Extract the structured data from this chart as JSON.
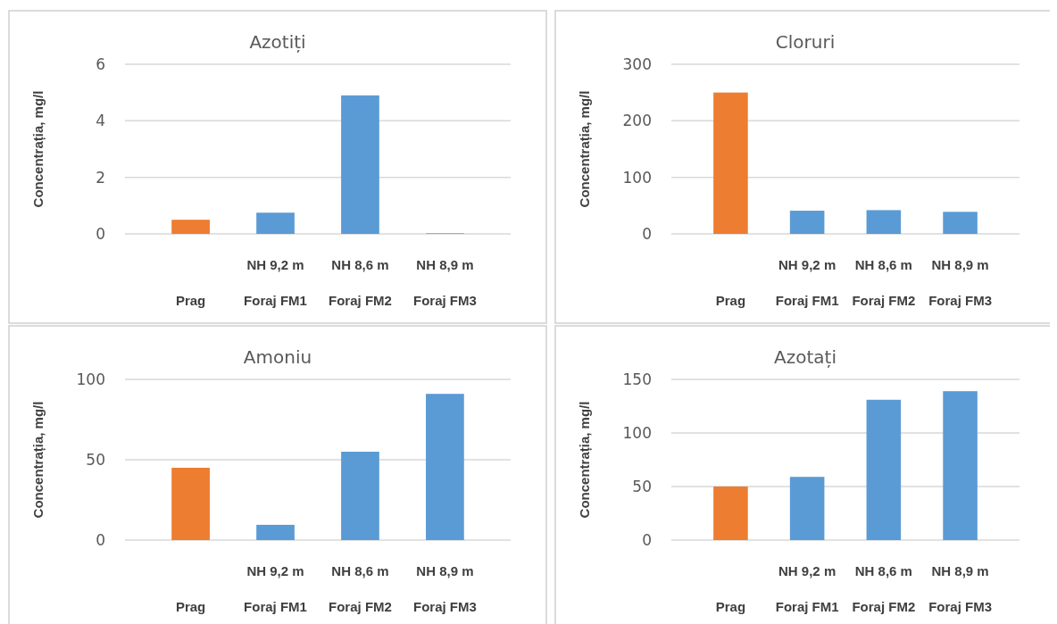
{
  "chart_data": [
    {
      "type": "bar",
      "title": "Azotiți",
      "ylabel": "Concentrația, mg/l",
      "categories": [
        "Prag",
        "Foraj FM1",
        "Foraj FM2",
        "Foraj FM3"
      ],
      "annotations": [
        "NH 9,2 m",
        "NH 8,6 m",
        "NH 8,9 m"
      ],
      "values": [
        0.5,
        0.75,
        4.9,
        0.02
      ],
      "colors": [
        "#ed7d31",
        "#5b9bd5",
        "#5b9bd5",
        "#5b9bd5"
      ],
      "ylim": [
        0,
        6
      ],
      "yticks": [
        0,
        2,
        4,
        6
      ],
      "grid": "y"
    },
    {
      "type": "bar",
      "title": "Cloruri",
      "ylabel": "Concentrația, mg/l",
      "categories": [
        "Prag",
        "Foraj FM1",
        "Foraj FM2",
        "Foraj FM3"
      ],
      "annotations": [
        "NH 9,2 m",
        "NH 8,6 m",
        "NH 8,9 m"
      ],
      "values": [
        250,
        41,
        42,
        39
      ],
      "colors": [
        "#ed7d31",
        "#5b9bd5",
        "#5b9bd5",
        "#5b9bd5"
      ],
      "ylim": [
        0,
        300
      ],
      "yticks": [
        0,
        100,
        200,
        300
      ],
      "grid": "y"
    },
    {
      "type": "bar",
      "title": "Amoniu",
      "ylabel": "Concentrația, mg/l",
      "categories": [
        "Prag",
        "Foraj FM1",
        "Foraj FM2",
        "Foraj FM3"
      ],
      "annotations": [
        "NH 9,2 m",
        "NH 8,6 m",
        "NH 8,9 m"
      ],
      "values": [
        45,
        9.5,
        55,
        91
      ],
      "colors": [
        "#ed7d31",
        "#5b9bd5",
        "#5b9bd5",
        "#5b9bd5"
      ],
      "ylim": [
        0,
        100
      ],
      "yticks": [
        0,
        50,
        100
      ],
      "grid": "y"
    },
    {
      "type": "bar",
      "title": "Azotați",
      "ylabel": "Concentrația, mg/l",
      "categories": [
        "Prag",
        "Foraj FM1",
        "Foraj FM2",
        "Foraj FM3"
      ],
      "annotations": [
        "NH 9,2 m",
        "NH 8,6 m",
        "NH 8,9 m"
      ],
      "values": [
        50,
        59,
        131,
        139
      ],
      "colors": [
        "#ed7d31",
        "#5b9bd5",
        "#5b9bd5",
        "#5b9bd5"
      ],
      "ylim": [
        0,
        150
      ],
      "yticks": [
        0,
        50,
        100,
        150
      ],
      "grid": "y"
    }
  ]
}
